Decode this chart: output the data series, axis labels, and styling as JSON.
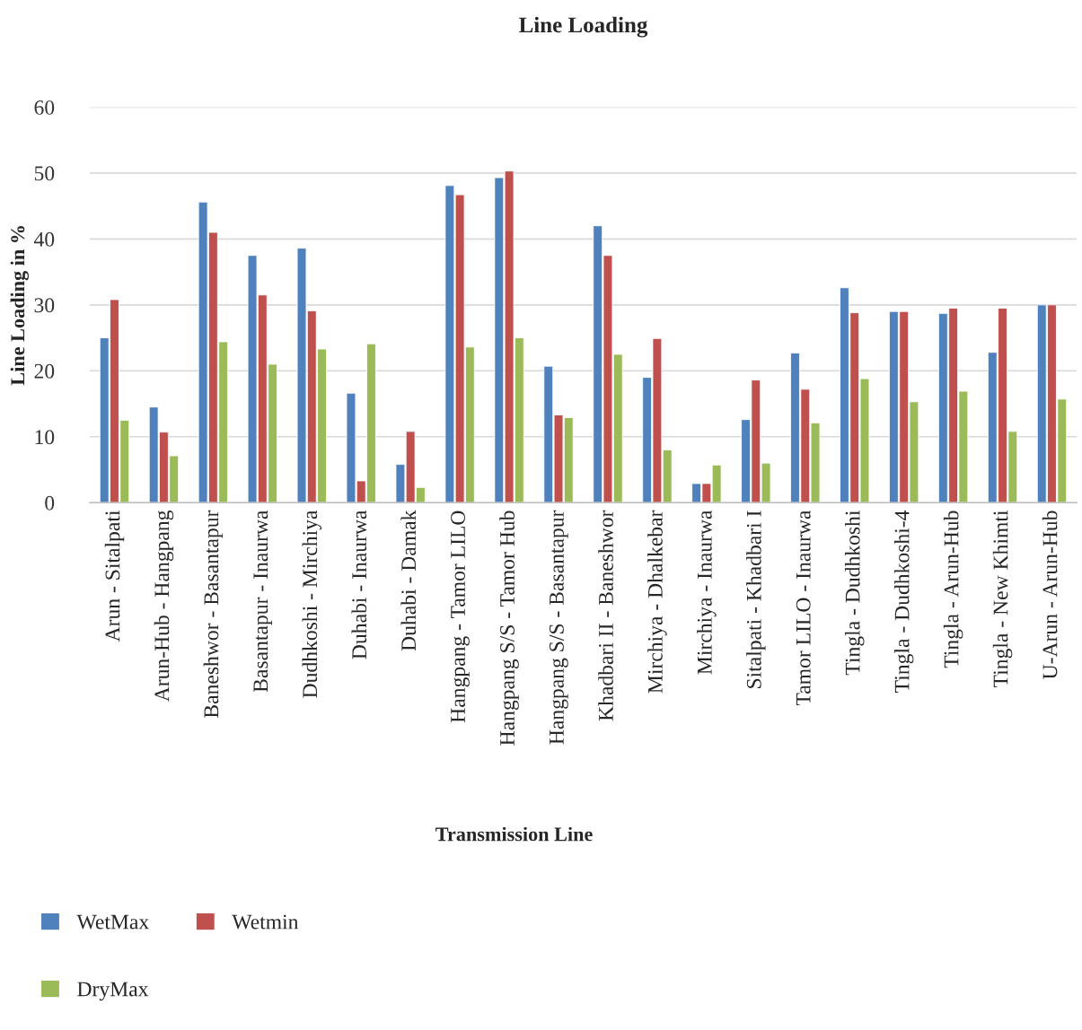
{
  "chart_data": {
    "type": "bar",
    "title": "Line Loading",
    "xlabel": "Transmission Line",
    "ylabel": "Line Loading in %",
    "categories": [
      "Arun - Sitalpati",
      "Arun-Hub - Hangpang",
      "Baneshwor - Basantapur",
      "Basantapur - Inaurwa",
      "Dudhkoshi - Mirchiya",
      "Duhabi - Inaurwa",
      "Duhabi - Damak",
      "Hangpang - Tamor LILO",
      "Hangpang S/S - Tamor Hub",
      "Hangpang S/S - Basantapur",
      "Khadbari II - Baneshwor",
      "Mirchiya - Dhalkebar",
      "Mirchiya - Inaurwa",
      "Sitalpati - Khadbari I",
      "Tamor LILO - Inaurwa",
      "Tingla - Dudhkoshi",
      "Tingla - Dudhkoshi-4",
      "Tingla - Arun-Hub",
      "Tingla - New Khimti",
      "U-Arun - Arun-Hub"
    ],
    "series": [
      {
        "name": "WetMax",
        "color": "#4f81bd",
        "values": [
          25.0,
          14.5,
          45.6,
          37.5,
          38.6,
          16.6,
          5.8,
          48.1,
          49.3,
          20.7,
          42.0,
          19.0,
          2.9,
          12.6,
          22.7,
          32.6,
          29.0,
          28.7,
          22.8,
          30.0
        ]
      },
      {
        "name": "Wetmin",
        "color": "#c0504d",
        "values": [
          30.8,
          10.7,
          41.0,
          31.5,
          29.1,
          3.3,
          10.8,
          46.7,
          50.3,
          13.3,
          37.5,
          24.9,
          2.9,
          18.6,
          17.2,
          28.8,
          29.0,
          29.5,
          29.5,
          30.0
        ]
      },
      {
        "name": "DryMax",
        "color": "#9bbb59",
        "values": [
          12.5,
          7.1,
          24.4,
          21.0,
          23.3,
          24.1,
          2.3,
          23.6,
          25.0,
          12.9,
          22.5,
          8.0,
          5.7,
          6.0,
          12.1,
          18.8,
          15.3,
          16.9,
          10.8,
          15.7
        ]
      }
    ],
    "ylim": [
      0,
      60
    ],
    "yticks": [
      0,
      10,
      20,
      30,
      40,
      50,
      60
    ],
    "grid": "y",
    "legend": "bottom left"
  }
}
